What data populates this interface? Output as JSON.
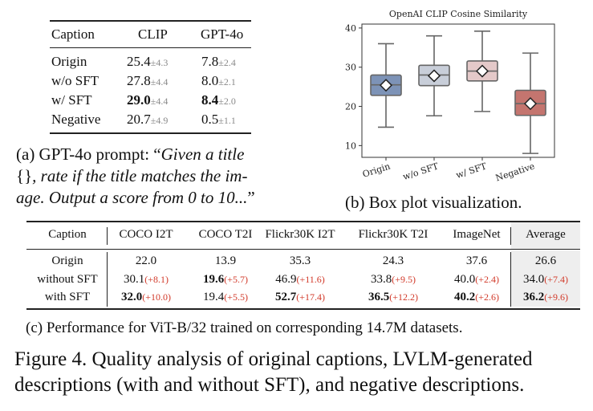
{
  "table_a": {
    "headers": [
      "Caption",
      "CLIP",
      "GPT-4o"
    ],
    "rows": [
      {
        "caption": "Origin",
        "clip": "25.4",
        "clip_sd": "±4.3",
        "gpt": "7.8",
        "gpt_sd": "±2.4",
        "bold": false
      },
      {
        "caption": "w/o SFT",
        "clip": "27.8",
        "clip_sd": "±4.4",
        "gpt": "8.0",
        "gpt_sd": "±2.1",
        "bold": false
      },
      {
        "caption": "w/ SFT",
        "clip": "29.0",
        "clip_sd": "±4.4",
        "gpt": "8.4",
        "gpt_sd": "±2.0",
        "bold": true
      },
      {
        "caption": "Negative",
        "clip": "20.7",
        "clip_sd": "±4.9",
        "gpt": "0.5",
        "gpt_sd": "±1.1",
        "bold": false
      }
    ],
    "caption_lines": {
      "l1_plain": "(a) GPT-4o prompt: “",
      "l1_italic": "Given a title",
      "l2_plain": "{}",
      "l2_italic": ", rate if the title matches the im-",
      "l3_italic": "age. Output a score from 0 to 10...",
      "l3_plain": "”"
    }
  },
  "chart_data": {
    "type": "box",
    "title": "OpenAI CLIP Cosine Similarity",
    "categories": [
      "Origin",
      "w/o SFT",
      "w/ SFT",
      "Negative"
    ],
    "ylim": [
      7,
      41
    ],
    "yticks": [
      10,
      20,
      30,
      40
    ],
    "series": [
      {
        "name": "Origin",
        "whisker_low": 14.7,
        "q1": 22.8,
        "median": 25.5,
        "q3": 28.0,
        "whisker_high": 36.0,
        "mean": 25.4,
        "color": "#7d93b7"
      },
      {
        "name": "w/o SFT",
        "whisker_low": 17.6,
        "q1": 25.3,
        "median": 28.0,
        "q3": 30.5,
        "whisker_high": 38.0,
        "mean": 27.8,
        "color": "#c8ced9"
      },
      {
        "name": "w/ SFT",
        "whisker_low": 18.7,
        "q1": 26.5,
        "median": 29.0,
        "q3": 31.6,
        "whisker_high": 39.2,
        "mean": 29.0,
        "color": "#e4c9c9"
      },
      {
        "name": "Negative",
        "whisker_low": 8.0,
        "q1": 17.7,
        "median": 20.7,
        "q3": 24.1,
        "whisker_high": 33.6,
        "mean": 20.7,
        "color": "#c4756f"
      }
    ],
    "caption": "(b) Box plot visualization."
  },
  "table_c": {
    "headers": [
      "Caption",
      "COCO I2T",
      "COCO T2I",
      "Flickr30K I2T",
      "Flickr30K T2I",
      "ImageNet",
      "Average"
    ],
    "rows": [
      {
        "caption": "Origin",
        "cells": [
          {
            "v": "22.0",
            "d": "",
            "b": false
          },
          {
            "v": "13.9",
            "d": "",
            "b": false
          },
          {
            "v": "35.3",
            "d": "",
            "b": false
          },
          {
            "v": "24.3",
            "d": "",
            "b": false
          },
          {
            "v": "37.6",
            "d": "",
            "b": false
          },
          {
            "v": "26.6",
            "d": "",
            "b": false
          }
        ]
      },
      {
        "caption": "without SFT",
        "cells": [
          {
            "v": "30.1",
            "d": "(+8.1)",
            "b": false
          },
          {
            "v": "19.6",
            "d": "(+5.7)",
            "b": true
          },
          {
            "v": "46.9",
            "d": "(+11.6)",
            "b": false
          },
          {
            "v": "33.8",
            "d": "(+9.5)",
            "b": false
          },
          {
            "v": "40.0",
            "d": "(+2.4)",
            "b": false
          },
          {
            "v": "34.0",
            "d": "(+7.4)",
            "b": false
          }
        ]
      },
      {
        "caption": "with SFT",
        "cells": [
          {
            "v": "32.0",
            "d": "(+10.0)",
            "b": true
          },
          {
            "v": "19.4",
            "d": "(+5.5)",
            "b": false
          },
          {
            "v": "52.7",
            "d": "(+17.4)",
            "b": true
          },
          {
            "v": "36.5",
            "d": "(+12.2)",
            "b": true
          },
          {
            "v": "40.2",
            "d": "(+2.6)",
            "b": true
          },
          {
            "v": "36.2",
            "d": "(+9.6)",
            "b": true
          }
        ]
      }
    ],
    "caption": "(c) Performance for ViT-B/32 trained on corresponding 14.7M datasets."
  },
  "figure_caption": {
    "line1": "Figure 4.  Quality analysis of original captions, LVLM-generated",
    "line2": "descriptions (with and without SFT), and negative descriptions."
  }
}
